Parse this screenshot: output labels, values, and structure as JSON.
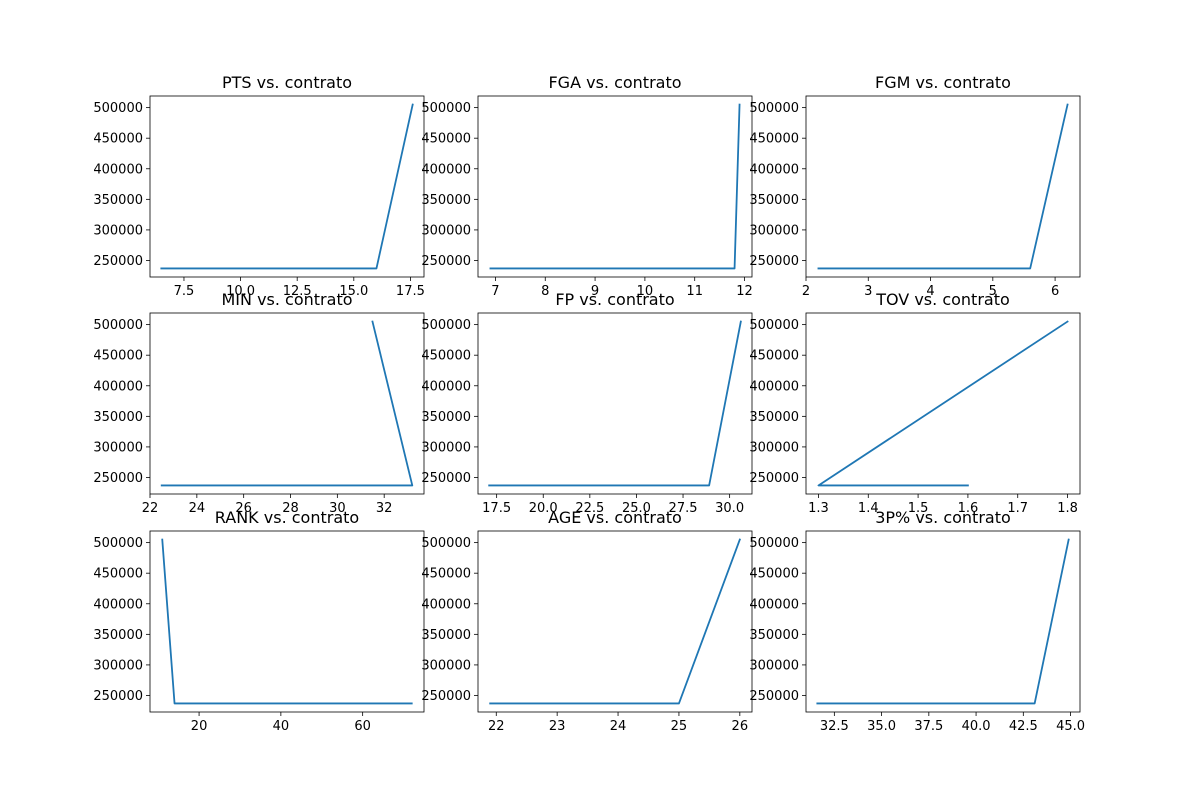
{
  "colors": {
    "line": "#1f77b4",
    "background": "#ffffff",
    "axis": "#000000"
  },
  "chart_data": [
    {
      "type": "line",
      "title": "PTS vs. contrato",
      "xlabel": "",
      "ylabel": "",
      "x": [
        6.5,
        16.0,
        17.6
      ],
      "y": [
        237000,
        237000,
        505000
      ],
      "xlim": [
        6.0,
        18.1
      ],
      "ylim": [
        223000,
        519000
      ],
      "xticks": [
        7.5,
        10.0,
        12.5,
        15.0,
        17.5
      ],
      "xtick_labels": [
        "7.5",
        "10.0",
        "12.5",
        "15.0",
        "17.5"
      ],
      "yticks": [
        250000,
        300000,
        350000,
        400000,
        450000,
        500000
      ],
      "ytick_labels": [
        "250000",
        "300000",
        "350000",
        "400000",
        "450000",
        "500000"
      ],
      "grid": false
    },
    {
      "type": "line",
      "title": "FGA vs. contrato",
      "xlabel": "",
      "ylabel": "",
      "x": [
        6.9,
        11.8,
        11.9
      ],
      "y": [
        237000,
        237000,
        505000
      ],
      "xlim": [
        6.65,
        12.15
      ],
      "ylim": [
        223000,
        519000
      ],
      "xticks": [
        7,
        8,
        9,
        10,
        11,
        12
      ],
      "xtick_labels": [
        "7",
        "8",
        "9",
        "10",
        "11",
        "12"
      ],
      "yticks": [
        250000,
        300000,
        350000,
        400000,
        450000,
        500000
      ],
      "ytick_labels": [
        "250000",
        "300000",
        "350000",
        "400000",
        "450000",
        "500000"
      ],
      "grid": false
    },
    {
      "type": "line",
      "title": "FGM vs. contrato",
      "xlabel": "",
      "ylabel": "",
      "x": [
        2.2,
        5.6,
        6.2
      ],
      "y": [
        237000,
        237000,
        505000
      ],
      "xlim": [
        2.0,
        6.4
      ],
      "ylim": [
        223000,
        519000
      ],
      "xticks": [
        2,
        3,
        4,
        5,
        6
      ],
      "xtick_labels": [
        "2",
        "3",
        "4",
        "5",
        "6"
      ],
      "yticks": [
        250000,
        300000,
        350000,
        400000,
        450000,
        500000
      ],
      "ytick_labels": [
        "250000",
        "300000",
        "350000",
        "400000",
        "450000",
        "500000"
      ],
      "grid": false
    },
    {
      "type": "line",
      "title": "MIN vs. contrato",
      "xlabel": "",
      "ylabel": "",
      "x": [
        31.5,
        33.2,
        22.5
      ],
      "y": [
        505000,
        237000,
        237000
      ],
      "xlim": [
        22.0,
        33.7
      ],
      "ylim": [
        223000,
        519000
      ],
      "xticks": [
        22,
        24,
        26,
        28,
        30,
        32
      ],
      "xtick_labels": [
        "22",
        "24",
        "26",
        "28",
        "30",
        "32"
      ],
      "yticks": [
        250000,
        300000,
        350000,
        400000,
        450000,
        500000
      ],
      "ytick_labels": [
        "250000",
        "300000",
        "350000",
        "400000",
        "450000",
        "500000"
      ],
      "grid": false
    },
    {
      "type": "line",
      "title": "FP vs. contrato",
      "xlabel": "",
      "ylabel": "",
      "x": [
        17.1,
        28.9,
        30.6
      ],
      "y": [
        237000,
        237000,
        505000
      ],
      "xlim": [
        16.5,
        31.2
      ],
      "ylim": [
        223000,
        519000
      ],
      "xticks": [
        17.5,
        20.0,
        22.5,
        25.0,
        27.5,
        30.0
      ],
      "xtick_labels": [
        "17.5",
        "20.0",
        "22.5",
        "25.0",
        "27.5",
        "30.0"
      ],
      "yticks": [
        250000,
        300000,
        350000,
        400000,
        450000,
        500000
      ],
      "ytick_labels": [
        "250000",
        "300000",
        "350000",
        "400000",
        "450000",
        "500000"
      ],
      "grid": false
    },
    {
      "type": "line",
      "title": "TOV vs. contrato",
      "xlabel": "",
      "ylabel": "",
      "x": [
        1.8,
        1.3,
        1.6
      ],
      "y": [
        505000,
        237000,
        237000
      ],
      "xlim": [
        1.275,
        1.825
      ],
      "ylim": [
        223000,
        519000
      ],
      "xticks": [
        1.3,
        1.4,
        1.5,
        1.6,
        1.7,
        1.8
      ],
      "xtick_labels": [
        "1.3",
        "1.4",
        "1.5",
        "1.6",
        "1.7",
        "1.8"
      ],
      "yticks": [
        250000,
        300000,
        350000,
        400000,
        450000,
        500000
      ],
      "ytick_labels": [
        "250000",
        "300000",
        "350000",
        "400000",
        "450000",
        "500000"
      ],
      "grid": false
    },
    {
      "type": "line",
      "title": "RANK vs. contrato",
      "xlabel": "",
      "ylabel": "",
      "x": [
        11,
        14,
        72
      ],
      "y": [
        505000,
        237000,
        237000
      ],
      "xlim": [
        8.0,
        75.0
      ],
      "ylim": [
        223000,
        519000
      ],
      "xticks": [
        20,
        40,
        60
      ],
      "xtick_labels": [
        "20",
        "40",
        "60"
      ],
      "yticks": [
        250000,
        300000,
        350000,
        400000,
        450000,
        500000
      ],
      "ytick_labels": [
        "250000",
        "300000",
        "350000",
        "400000",
        "450000",
        "500000"
      ],
      "grid": false
    },
    {
      "type": "line",
      "title": "AGE vs. contrato",
      "xlabel": "",
      "ylabel": "",
      "x": [
        21.9,
        25.0,
        26.0
      ],
      "y": [
        237000,
        237000,
        505000
      ],
      "xlim": [
        21.7,
        26.2
      ],
      "ylim": [
        223000,
        519000
      ],
      "xticks": [
        22,
        23,
        24,
        25,
        26
      ],
      "xtick_labels": [
        "22",
        "23",
        "24",
        "25",
        "26"
      ],
      "yticks": [
        250000,
        300000,
        350000,
        400000,
        450000,
        500000
      ],
      "ytick_labels": [
        "250000",
        "300000",
        "350000",
        "400000",
        "450000",
        "500000"
      ],
      "grid": false
    },
    {
      "type": "line",
      "title": "3P% vs. contrato",
      "xlabel": "",
      "ylabel": "",
      "x": [
        31.6,
        43.1,
        44.9
      ],
      "y": [
        237000,
        237000,
        505000
      ],
      "xlim": [
        31.0,
        45.5
      ],
      "ylim": [
        223000,
        519000
      ],
      "xticks": [
        32.5,
        35.0,
        37.5,
        40.0,
        42.5,
        45.0
      ],
      "xtick_labels": [
        "32.5",
        "35.0",
        "37.5",
        "40.0",
        "42.5",
        "45.0"
      ],
      "yticks": [
        250000,
        300000,
        350000,
        400000,
        450000,
        500000
      ],
      "ytick_labels": [
        "250000",
        "300000",
        "350000",
        "400000",
        "450000",
        "500000"
      ],
      "grid": false
    }
  ]
}
